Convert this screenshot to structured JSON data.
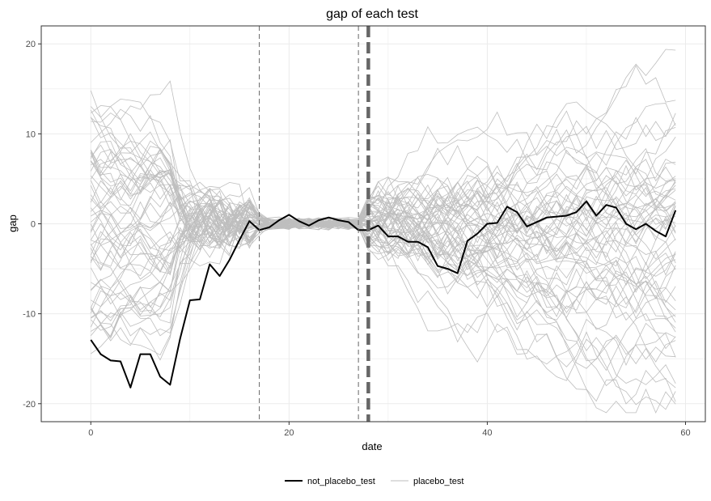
{
  "chart_data": {
    "type": "line",
    "title": "gap of each test",
    "xlabel": "date",
    "ylabel": "gap",
    "xlim": [
      -5,
      62
    ],
    "ylim": [
      -22,
      22
    ],
    "x_ticks": [
      0,
      20,
      40,
      60
    ],
    "y_ticks": [
      -20,
      -10,
      0,
      10,
      20
    ],
    "grid": true,
    "legend_position": "bottom",
    "colors": {
      "treated": "#000000",
      "placebo": "#bebebe",
      "vline": "#555555",
      "grid": "#ebebeb",
      "border": "#333333"
    },
    "vlines": [
      {
        "x": 17,
        "style": "thin-dashed"
      },
      {
        "x": 27,
        "style": "thin-dashed"
      },
      {
        "x": 28,
        "style": "thick-dashed"
      }
    ],
    "series": [
      {
        "name": "not_placebo_test",
        "x": [
          0,
          1,
          2,
          3,
          4,
          5,
          6,
          7,
          8,
          9,
          10,
          11,
          12,
          13,
          14,
          15,
          16,
          17,
          18,
          19,
          20,
          21,
          22,
          23,
          24,
          25,
          26,
          27,
          28,
          29,
          30,
          31,
          32,
          33,
          34,
          35,
          36,
          37,
          38,
          39,
          40,
          41,
          42,
          43,
          44,
          45,
          46,
          47,
          48,
          49,
          50,
          51,
          52,
          53,
          54,
          55,
          56,
          57,
          58,
          59
        ],
        "values": [
          -12.9,
          -14.5,
          -15.2,
          -15.3,
          -18.2,
          -14.5,
          -14.5,
          -17.0,
          -17.9,
          -12.8,
          -8.5,
          -8.4,
          -4.5,
          -5.8,
          -4.0,
          -1.8,
          0.3,
          -0.7,
          -0.4,
          0.4,
          1.0,
          0.3,
          -0.2,
          0.4,
          0.7,
          0.4,
          0.2,
          -0.7,
          -0.7,
          -0.2,
          -1.4,
          -1.4,
          -2.0,
          -2.0,
          -2.6,
          -4.7,
          -5.0,
          -5.5,
          -1.9,
          -1.1,
          0.0,
          0.1,
          1.9,
          1.3,
          -0.3,
          0.2,
          0.7,
          0.8,
          0.9,
          1.3,
          2.5,
          0.9,
          2.1,
          1.8,
          0.0,
          -0.6,
          0.0,
          -0.8,
          -1.4,
          1.5
        ]
      },
      {
        "name": "placebo_test",
        "count": 60
      }
    ]
  },
  "legend": {
    "items": [
      {
        "label": "not_placebo_test"
      },
      {
        "label": "placebo_test"
      }
    ]
  }
}
